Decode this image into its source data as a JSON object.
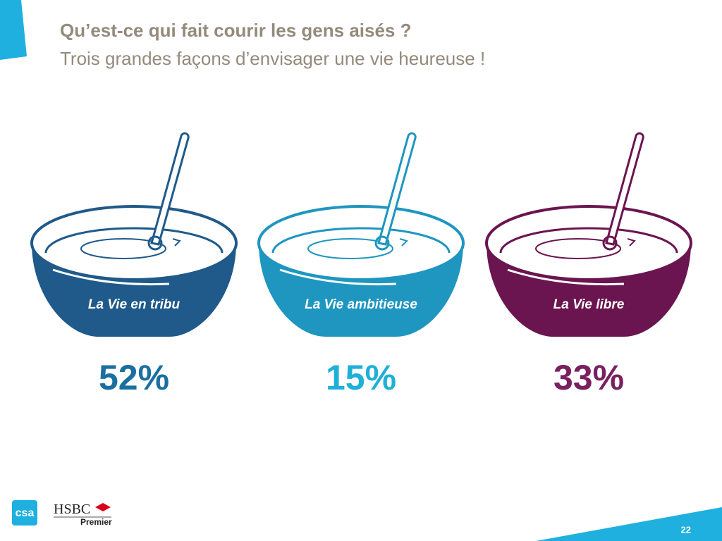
{
  "header": {
    "title": "Qu’est-ce qui fait courir les gens aisés ?",
    "subtitle": "Trois grandes façons d’envisager une vie heureuse !"
  },
  "bowls": [
    {
      "label": "La Vie en tribu",
      "value": "52%"
    },
    {
      "label": "La Vie ambitieuse",
      "value": "15%"
    },
    {
      "label": "La Vie libre",
      "value": "33%"
    }
  ],
  "footer": {
    "logo": "csa",
    "brand": "HSBC",
    "brand_sub": "Premier",
    "page": "22"
  }
}
